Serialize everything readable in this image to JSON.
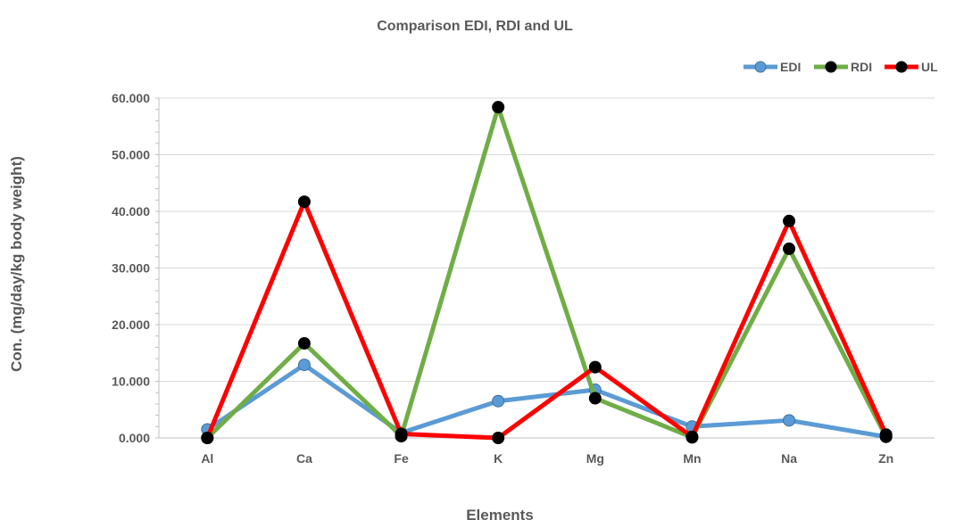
{
  "chart_data": {
    "type": "line",
    "title": "Comparison EDI, RDI and UL",
    "xlabel": "Elements",
    "ylabel": "Con. (mg/day/kg body weight)",
    "categories": [
      "Al",
      "Ca",
      "Fe",
      "K",
      "Mg",
      "Mn",
      "Na",
      "Zn"
    ],
    "ylim": [
      0,
      60
    ],
    "yticks": [
      "0.000",
      "10.000",
      "20.000",
      "30.000",
      "40.000",
      "50.000",
      "60.000"
    ],
    "grid": true,
    "legend_position": "top-right",
    "series": [
      {
        "name": "EDI",
        "color": "#5B9BD5",
        "marker_color": "#5B9BD5",
        "values": [
          1.5,
          12.9,
          0.9,
          6.5,
          8.5,
          2.0,
          3.1,
          0.2
        ]
      },
      {
        "name": "RDI",
        "color": "#70AD47",
        "marker_color": "#000000",
        "values": [
          0.0,
          16.7,
          0.3,
          58.4,
          7.0,
          0.1,
          33.4,
          0.2
        ]
      },
      {
        "name": "UL",
        "color": "#FF0000",
        "marker_color": "#000000",
        "values": [
          0.0,
          41.7,
          0.7,
          0.0,
          12.5,
          0.2,
          38.3,
          0.6
        ]
      }
    ]
  }
}
